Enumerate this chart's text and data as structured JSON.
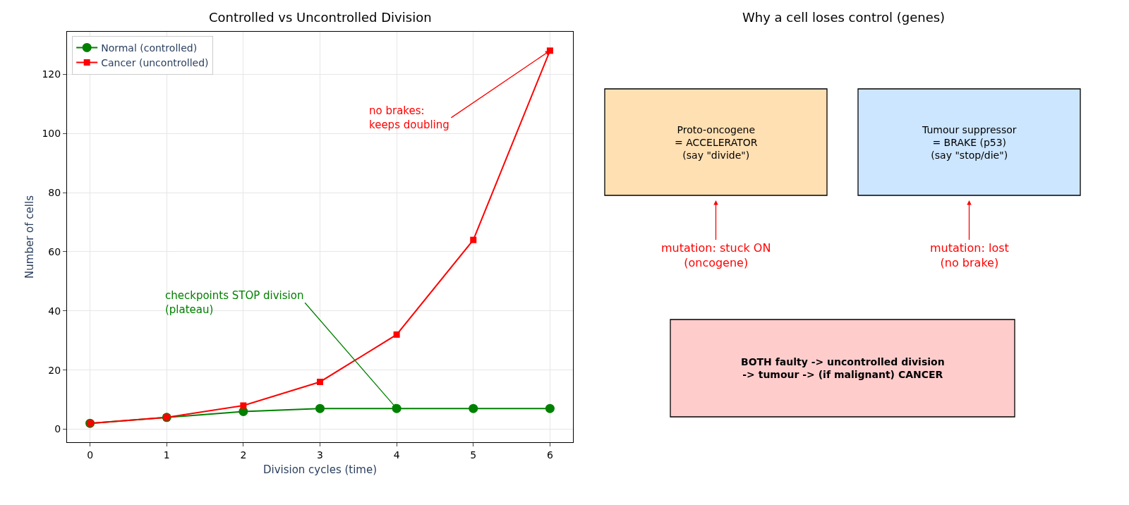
{
  "chart_data": [
    {
      "type": "line",
      "title": "Controlled vs Uncontrolled Division",
      "xlabel": "Division cycles (time)",
      "ylabel": "Number of cells",
      "x": [
        0,
        1,
        2,
        3,
        4,
        5,
        6
      ],
      "series": [
        {
          "name": "Normal (controlled)",
          "color": "#008000",
          "marker": "circle",
          "values": [
            2,
            4,
            6,
            7,
            7,
            7,
            7
          ]
        },
        {
          "name": "Cancer (uncontrolled)",
          "color": "#ff0000",
          "marker": "square",
          "values": [
            2,
            4,
            8,
            16,
            32,
            64,
            128
          ]
        }
      ],
      "xlim": [
        -0.3,
        6.3
      ],
      "xticks": [
        0,
        1,
        2,
        3,
        4,
        5,
        6
      ],
      "ylim": [
        -4.4,
        134.4
      ],
      "yticks": [
        0,
        20,
        40,
        60,
        80,
        100,
        120
      ],
      "grid": true,
      "legend": "top left",
      "annotations": [
        {
          "text": "no brakes:\nkeeps doubling",
          "x": 6,
          "y": 128
        },
        {
          "text": "checkpoints STOP division\n(plateau)",
          "x": 4,
          "y": 7
        }
      ]
    },
    {
      "type": "other",
      "title": "Why a cell loses control (genes)",
      "annotations": [
        "Proto-oncogene\n= ACCELERATOR\n(say \"divide\")",
        "Tumour suppressor\n= BRAKE (p53)\n(say \"stop/die\")",
        "mutation: stuck ON\n(oncogene)",
        "mutation: lost\n(no brake)",
        "BOTH faulty -> uncontrolled division\n-> tumour -> (if malignant) CANCER"
      ]
    }
  ]
}
